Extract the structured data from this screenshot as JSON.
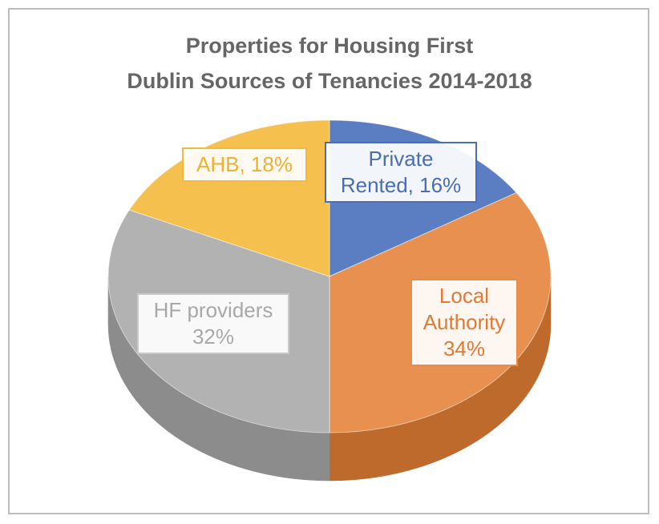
{
  "chart_data": {
    "type": "pie",
    "title": [
      "Properties for Housing First",
      "Dublin Sources of Tenancies 2014-2018"
    ],
    "slices": [
      {
        "name": "Private Rented",
        "value": 16,
        "color": "#5b7ec2",
        "side_color": "#3f5f9e",
        "label_lines": [
          "Private",
          "Rented, 16%"
        ]
      },
      {
        "name": "Local Authority",
        "value": 34,
        "color": "#e7904f",
        "side_color": "#bd6a2c",
        "label_lines": [
          "Local",
          "Authority",
          "34%"
        ]
      },
      {
        "name": "HF providers",
        "value": 32,
        "color": "#b2b2b2",
        "side_color": "#8c8c8c",
        "label_lines": [
          "HF providers",
          "32%"
        ]
      },
      {
        "name": "AHB",
        "value": 18,
        "color": "#f5c04e",
        "side_color": "#c99628",
        "label_lines": [
          "AHB, 18%"
        ]
      }
    ]
  }
}
